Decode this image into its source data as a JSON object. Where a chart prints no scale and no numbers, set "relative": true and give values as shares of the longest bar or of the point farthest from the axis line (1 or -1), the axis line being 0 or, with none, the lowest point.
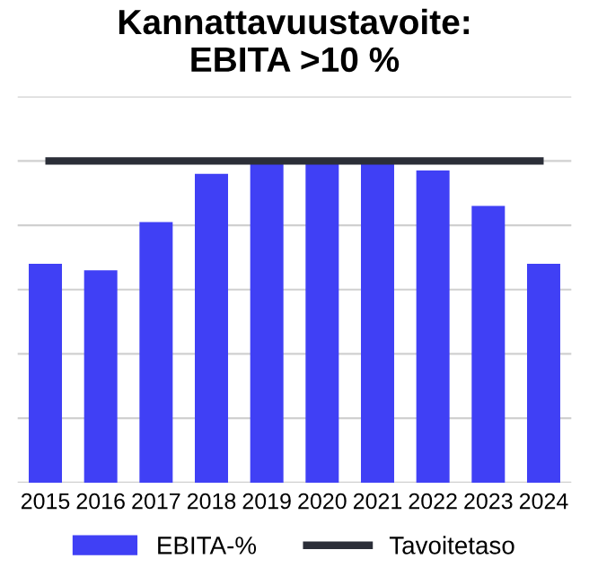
{
  "chart_data": {
    "type": "bar",
    "title": "Kannattavuustavoite:\nEBITA >10 %",
    "categories": [
      "2015",
      "2016",
      "2017",
      "2018",
      "2019",
      "2020",
      "2021",
      "2022",
      "2023",
      "2024"
    ],
    "relative": true,
    "grid": "y",
    "legend": "bottom",
    "series": [
      {
        "name": "EBITA-%",
        "color": "#4040f5",
        "values": [
          0.68,
          0.66,
          0.81,
          0.96,
          0.99,
          1,
          1,
          0.97,
          0.86,
          0.68
        ]
      },
      {
        "name": "Tavoitetaso",
        "type": "line",
        "color": "#2b2e38",
        "values": [
          1,
          1,
          1,
          1,
          1,
          1,
          1,
          1,
          1,
          1
        ]
      }
    ]
  }
}
